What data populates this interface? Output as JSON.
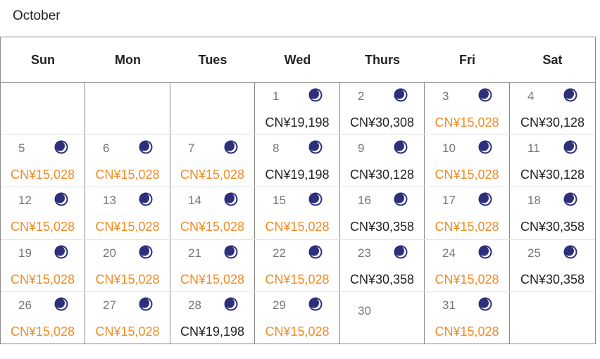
{
  "month": "October",
  "weekdays": [
    "Sun",
    "Mon",
    "Tues",
    "Wed",
    "Thurs",
    "Fri",
    "Sat"
  ],
  "colors": {
    "low_price": "#f08c26",
    "normal_price": "#222222",
    "moon": "#2d2f7a"
  },
  "weeks": [
    [
      null,
      null,
      null,
      {
        "day": "1",
        "price": "CN¥19,198",
        "low": false,
        "icon": "moon-icon"
      },
      {
        "day": "2",
        "price": "CN¥30,308",
        "low": false,
        "icon": "moon-icon"
      },
      {
        "day": "3",
        "price": "CN¥15,028",
        "low": true,
        "icon": "moon-icon"
      },
      {
        "day": "4",
        "price": "CN¥30,128",
        "low": false,
        "icon": "moon-icon"
      }
    ],
    [
      {
        "day": "5",
        "price": "CN¥15,028",
        "low": true,
        "icon": "moon-icon"
      },
      {
        "day": "6",
        "price": "CN¥15,028",
        "low": true,
        "icon": "moon-icon"
      },
      {
        "day": "7",
        "price": "CN¥15,028",
        "low": true,
        "icon": "moon-icon"
      },
      {
        "day": "8",
        "price": "CN¥19,198",
        "low": false,
        "icon": "moon-icon"
      },
      {
        "day": "9",
        "price": "CN¥30,128",
        "low": false,
        "icon": "moon-icon"
      },
      {
        "day": "10",
        "price": "CN¥15,028",
        "low": true,
        "icon": "moon-icon"
      },
      {
        "day": "11",
        "price": "CN¥30,128",
        "low": false,
        "icon": "moon-icon"
      }
    ],
    [
      {
        "day": "12",
        "price": "CN¥15,028",
        "low": true,
        "icon": "moon-icon"
      },
      {
        "day": "13",
        "price": "CN¥15,028",
        "low": true,
        "icon": "moon-icon"
      },
      {
        "day": "14",
        "price": "CN¥15,028",
        "low": true,
        "icon": "moon-icon"
      },
      {
        "day": "15",
        "price": "CN¥15,028",
        "low": true,
        "icon": "moon-icon"
      },
      {
        "day": "16",
        "price": "CN¥30,358",
        "low": false,
        "icon": "moon-icon"
      },
      {
        "day": "17",
        "price": "CN¥15,028",
        "low": true,
        "icon": "moon-icon"
      },
      {
        "day": "18",
        "price": "CN¥30,358",
        "low": false,
        "icon": "moon-icon"
      }
    ],
    [
      {
        "day": "19",
        "price": "CN¥15,028",
        "low": true,
        "icon": "moon-icon"
      },
      {
        "day": "20",
        "price": "CN¥15,028",
        "low": true,
        "icon": "moon-icon"
      },
      {
        "day": "21",
        "price": "CN¥15,028",
        "low": true,
        "icon": "moon-icon"
      },
      {
        "day": "22",
        "price": "CN¥15,028",
        "low": true,
        "icon": "moon-icon"
      },
      {
        "day": "23",
        "price": "CN¥30,358",
        "low": false,
        "icon": "moon-icon"
      },
      {
        "day": "24",
        "price": "CN¥15,028",
        "low": true,
        "icon": "moon-icon"
      },
      {
        "day": "25",
        "price": "CN¥30,358",
        "low": false,
        "icon": "moon-icon"
      }
    ],
    [
      {
        "day": "26",
        "price": "CN¥15,028",
        "low": true,
        "icon": "moon-icon"
      },
      {
        "day": "27",
        "price": "CN¥15,028",
        "low": true,
        "icon": "moon-icon"
      },
      {
        "day": "28",
        "price": "CN¥19,198",
        "low": false,
        "icon": "moon-icon"
      },
      {
        "day": "29",
        "price": "CN¥15,028",
        "low": true,
        "icon": "moon-icon"
      },
      {
        "day": "30",
        "price": null,
        "low": false,
        "icon": null
      },
      {
        "day": "31",
        "price": "CN¥15,028",
        "low": true,
        "icon": "moon-icon"
      },
      null
    ]
  ]
}
